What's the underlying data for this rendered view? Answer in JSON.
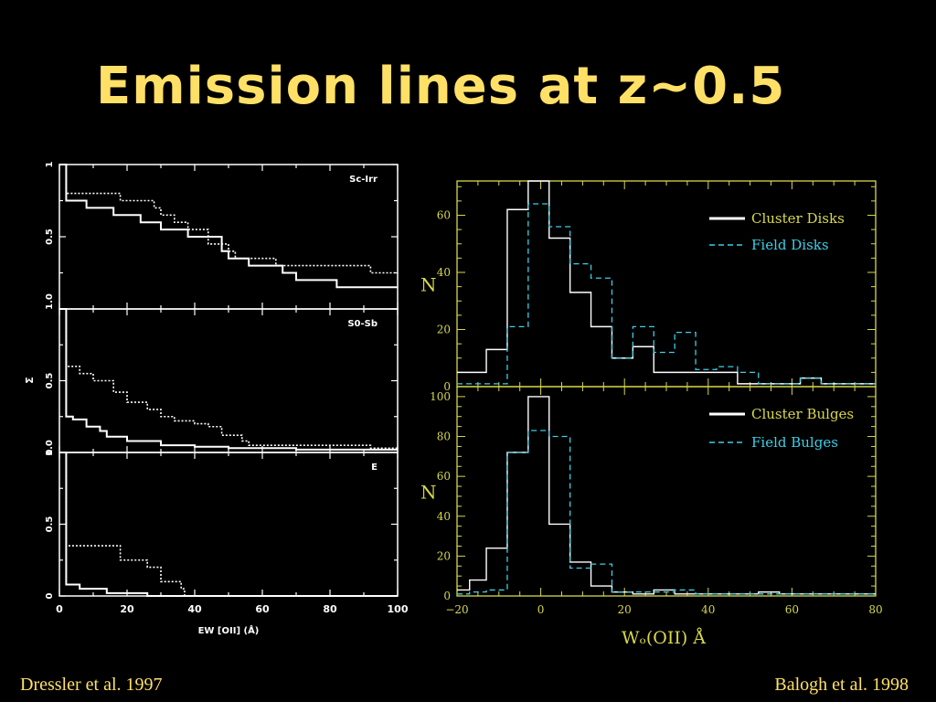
{
  "slide": {
    "title": "Emission lines at z~0.5",
    "credit_left": "Dressler et al. 1997",
    "credit_right": "Balogh et al. 1998"
  },
  "colors": {
    "background": "#000000",
    "title": "#ffe066",
    "axis_right": "#d8d84a",
    "cluster": "#ffffff",
    "field": "#3ad0e8"
  },
  "chart_data": [
    {
      "type": "line",
      "step": true,
      "panels": [
        {
          "label": "Sc-Irr",
          "series": [
            {
              "style": "solid",
              "x": [
                0,
                2,
                6,
                8,
                14,
                16,
                20,
                24,
                28,
                30,
                32,
                38,
                44,
                48,
                50,
                56,
                64,
                66,
                70,
                80,
                82,
                100
              ],
              "y": [
                1.0,
                0.75,
                0.75,
                0.7,
                0.7,
                0.65,
                0.65,
                0.6,
                0.6,
                0.55,
                0.55,
                0.5,
                0.5,
                0.4,
                0.35,
                0.3,
                0.3,
                0.25,
                0.2,
                0.2,
                0.15,
                0.15
              ]
            },
            {
              "style": "dotted",
              "x": [
                0,
                2,
                16,
                18,
                26,
                28,
                30,
                34,
                38,
                44,
                50,
                52,
                62,
                64,
                90,
                92,
                100
              ],
              "y": [
                1.0,
                0.8,
                0.8,
                0.75,
                0.75,
                0.7,
                0.65,
                0.6,
                0.55,
                0.45,
                0.4,
                0.35,
                0.35,
                0.3,
                0.3,
                0.25,
                0.25
              ]
            }
          ]
        },
        {
          "label": "S0-Sb",
          "series": [
            {
              "style": "solid",
              "x": [
                0,
                2,
                4,
                8,
                12,
                14,
                20,
                30,
                40,
                50,
                60,
                70,
                100
              ],
              "y": [
                1.0,
                0.25,
                0.23,
                0.18,
                0.15,
                0.11,
                0.08,
                0.05,
                0.04,
                0.03,
                0.03,
                0.02,
                0.02
              ]
            },
            {
              "style": "dotted",
              "x": [
                0,
                2,
                6,
                10,
                16,
                20,
                26,
                30,
                34,
                40,
                44,
                48,
                54,
                56,
                60,
                70,
                90,
                92,
                100
              ],
              "y": [
                1.0,
                0.6,
                0.55,
                0.5,
                0.42,
                0.35,
                0.3,
                0.25,
                0.22,
                0.2,
                0.18,
                0.12,
                0.08,
                0.05,
                0.05,
                0.05,
                0.05,
                0.03,
                0.03
              ]
            }
          ]
        },
        {
          "label": "E",
          "series": [
            {
              "style": "solid",
              "x": [
                0,
                2,
                6,
                14,
                26,
                100
              ],
              "y": [
                1.0,
                0.08,
                0.05,
                0.02,
                0.0,
                0.0
              ]
            },
            {
              "style": "dotted",
              "x": [
                0,
                2,
                16,
                18,
                22,
                26,
                30,
                34,
                36,
                37
              ],
              "y": [
                1.0,
                0.35,
                0.35,
                0.25,
                0.25,
                0.2,
                0.1,
                0.1,
                0.05,
                0.0
              ]
            }
          ]
        }
      ],
      "xlim": [
        0,
        100
      ],
      "ylim": [
        0,
        1
      ],
      "xticks": [
        "0",
        "20",
        "40",
        "60",
        "80",
        "100"
      ],
      "yticks_panel": [
        "0",
        "0.5",
        "1"
      ],
      "y_edge_ticks": [
        "1.0",
        "0.5",
        "0"
      ],
      "xlabel": "EW [OII] (Å)",
      "ylabel": "Σ"
    },
    {
      "type": "histogram",
      "bin_edges": [
        -20,
        -17,
        -13,
        -8,
        -3,
        2,
        7,
        12,
        17,
        22,
        27,
        32,
        37,
        42,
        47,
        52,
        57,
        62,
        67,
        72,
        77,
        80
      ],
      "panels": [
        {
          "ylim": [
            0,
            72
          ],
          "yticks": [
            "0",
            "20",
            "40",
            "60"
          ],
          "ylabel": "N",
          "series": [
            {
              "name": "Cluster Disks",
              "style": "solid",
              "values": [
                5,
                5,
                13,
                62,
                72,
                52,
                33,
                21,
                10,
                14,
                5,
                5,
                5,
                5,
                1,
                1,
                1,
                3,
                1,
                1,
                1
              ]
            },
            {
              "name": "Field Disks",
              "style": "dashed",
              "values": [
                1,
                1,
                1,
                21,
                64,
                56,
                43,
                38,
                10,
                21,
                12,
                19,
                6,
                7,
                5,
                1,
                1,
                3,
                1,
                1,
                1
              ]
            }
          ]
        },
        {
          "ylim": [
            0,
            105
          ],
          "yticks": [
            "0",
            "20",
            "40",
            "60",
            "80",
            "100"
          ],
          "ylabel": "N",
          "series": [
            {
              "name": "Cluster Bulges",
              "style": "solid",
              "values": [
                3,
                8,
                24,
                72,
                100,
                36,
                17,
                5,
                2,
                1,
                3,
                1,
                1,
                1,
                1,
                2,
                1,
                1,
                1,
                1,
                1
              ]
            },
            {
              "name": "Field Bulges",
              "style": "dashed",
              "values": [
                1,
                2,
                3,
                72,
                83,
                80,
                14,
                16,
                2,
                2,
                2,
                3,
                1,
                1,
                1,
                1,
                1,
                1,
                1,
                1,
                1
              ]
            }
          ]
        }
      ],
      "xlim": [
        -20,
        80
      ],
      "xticks": [
        "-20",
        "0",
        "20",
        "40",
        "60",
        "80"
      ],
      "xlabel": "Wₒ(OII)  Å"
    }
  ]
}
